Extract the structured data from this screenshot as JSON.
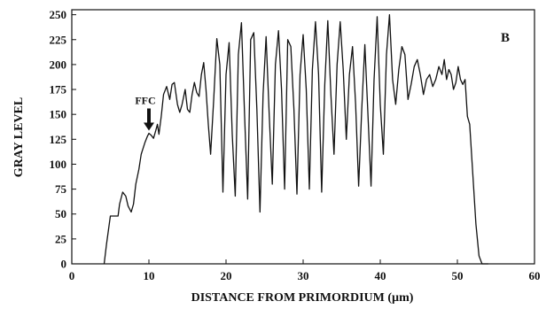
{
  "chart_data": {
    "type": "line",
    "title": "",
    "panel_label": "B",
    "xlabel": "DISTANCE FROM PRIMORDIUM (µm)",
    "ylabel": "GRAY LEVEL",
    "xlim": [
      0,
      60
    ],
    "ylim": [
      0,
      255
    ],
    "xticks": [
      0,
      10,
      20,
      30,
      40,
      50,
      60
    ],
    "yticks": [
      0,
      25,
      50,
      75,
      100,
      125,
      150,
      175,
      200,
      225,
      250
    ],
    "grid": false,
    "annotation": {
      "text": "FFC",
      "x": 10,
      "y": 131
    },
    "series": [
      {
        "name": "",
        "color": "#111111",
        "x": [
          4.2,
          4.5,
          5.0,
          5.3,
          5.5,
          6.0,
          6.2,
          6.6,
          7.0,
          7.3,
          7.7,
          8.0,
          8.3,
          8.7,
          9.0,
          9.5,
          9.8,
          10.0,
          10.3,
          10.6,
          10.9,
          11.1,
          11.3,
          11.6,
          11.9,
          12.3,
          12.7,
          13.0,
          13.3,
          13.7,
          14.0,
          14.3,
          14.7,
          15.0,
          15.3,
          15.6,
          15.9,
          16.2,
          16.5,
          16.8,
          17.1,
          17.4,
          17.7,
          18.0,
          18.4,
          18.8,
          19.2,
          19.6,
          20.0,
          20.4,
          20.8,
          21.2,
          21.6,
          22.0,
          22.4,
          22.8,
          23.2,
          23.6,
          24.0,
          24.4,
          24.8,
          25.2,
          25.6,
          26.0,
          26.4,
          26.8,
          27.2,
          27.6,
          28.0,
          28.4,
          28.8,
          29.2,
          29.6,
          30.0,
          30.4,
          30.8,
          31.2,
          31.6,
          32.0,
          32.4,
          32.8,
          33.2,
          33.6,
          34.0,
          34.4,
          34.8,
          35.2,
          35.6,
          36.0,
          36.4,
          36.8,
          37.2,
          37.6,
          38.0,
          38.4,
          38.8,
          39.2,
          39.6,
          40.0,
          40.4,
          40.8,
          41.2,
          41.6,
          42.0,
          42.4,
          42.8,
          43.2,
          43.6,
          44.0,
          44.4,
          44.8,
          45.2,
          45.6,
          46.0,
          46.4,
          46.8,
          47.2,
          47.6,
          48.0,
          48.3,
          48.6,
          48.9,
          49.2,
          49.5,
          49.8,
          50.1,
          50.4,
          50.7,
          51.0,
          51.3,
          51.6,
          52.0,
          52.4,
          52.8,
          53.2,
          53.5,
          53.8,
          54.0
        ],
        "y": [
          0,
          20,
          48,
          48,
          48,
          48,
          60,
          72,
          68,
          58,
          52,
          60,
          80,
          95,
          110,
          122,
          128,
          131,
          129,
          126,
          134,
          140,
          130,
          148,
          170,
          178,
          165,
          180,
          182,
          160,
          152,
          160,
          175,
          155,
          152,
          170,
          182,
          172,
          168,
          190,
          202,
          175,
          140,
          110,
          165,
          226,
          200,
          72,
          190,
          222,
          130,
          68,
          210,
          242,
          150,
          65,
          225,
          232,
          155,
          52,
          170,
          228,
          150,
          80,
          200,
          234,
          175,
          75,
          225,
          218,
          155,
          70,
          190,
          230,
          175,
          75,
          195,
          243,
          190,
          72,
          180,
          244,
          170,
          110,
          200,
          243,
          195,
          125,
          190,
          218,
          160,
          78,
          155,
          220,
          150,
          78,
          185,
          248,
          160,
          110,
          210,
          250,
          185,
          160,
          195,
          218,
          210,
          165,
          180,
          198,
          205,
          190,
          170,
          185,
          190,
          178,
          185,
          198,
          190,
          205,
          185,
          195,
          190,
          175,
          182,
          198,
          185,
          180,
          185,
          148,
          140,
          90,
          40,
          8,
          0,
          0,
          0,
          0
        ]
      }
    ]
  }
}
